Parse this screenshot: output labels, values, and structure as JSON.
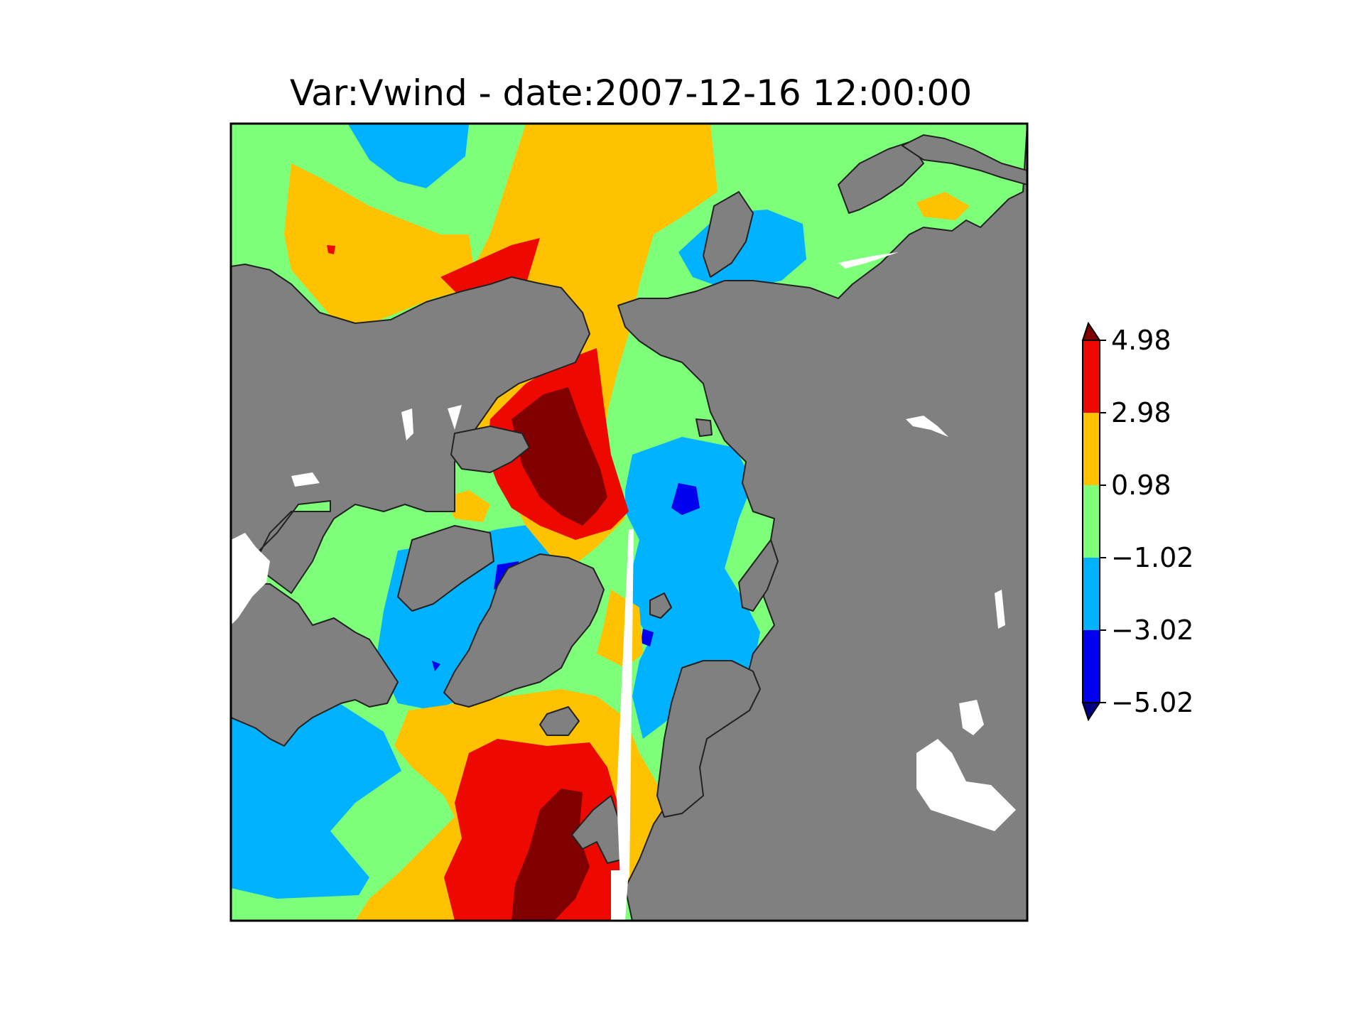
{
  "figure": {
    "title": "Var:Vwind - date:2007-12-16 12:00:00"
  },
  "colors": {
    "land": "#808080",
    "coast": "#222222",
    "missing": "#ffffff",
    "frame": "#000000"
  },
  "colorbar": {
    "extend": "both",
    "tick_labels": [
      "4.98",
      "2.98",
      "0.98",
      "−1.02",
      "−3.02",
      "−5.02"
    ],
    "bins": [
      {
        "from": -5.02,
        "to": -3.02,
        "color": "#0000ee"
      },
      {
        "from": -3.02,
        "to": -1.02,
        "color": "#00b2ff"
      },
      {
        "from": -1.02,
        "to": 0.98,
        "color": "#7dff7a"
      },
      {
        "from": 0.98,
        "to": 2.98,
        "color": "#ffc200"
      },
      {
        "from": 2.98,
        "to": 4.98,
        "color": "#ee0900"
      }
    ],
    "over_color": "#800000",
    "under_color": "#000080"
  },
  "chart_data": {
    "type": "heatmap",
    "variable": "Vwind",
    "date": "2007-12-16 12:00:00",
    "projection": "north polar stereographic",
    "levels": [
      -5.02,
      -3.02,
      -1.02,
      0.98,
      2.98,
      4.98
    ],
    "extend": "both"
  }
}
